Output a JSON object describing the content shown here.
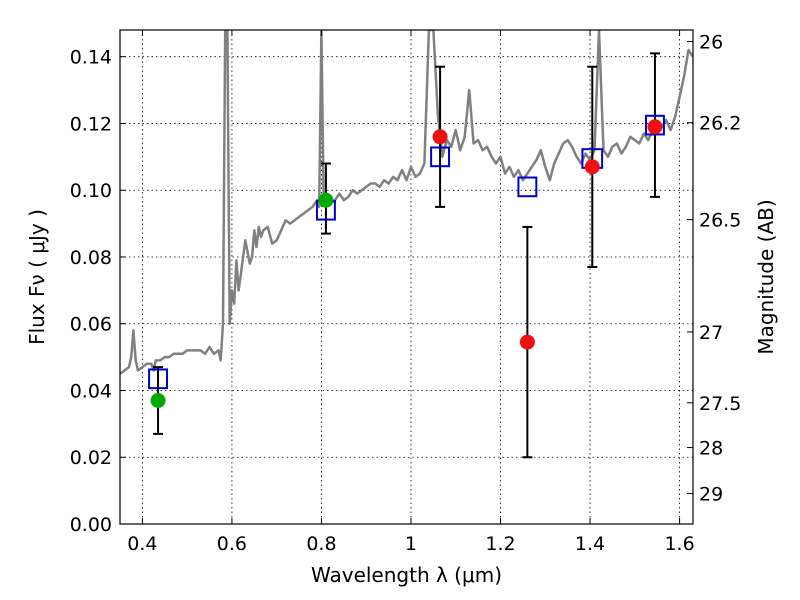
{
  "chart_data": {
    "type": "scatter",
    "xlabel": "Wavelength  λ (μm)",
    "ylabel_left": "Flux  Fν  ( μJy )",
    "ylabel_right": "Magnitude (AB)",
    "xlim": [
      0.35,
      1.63
    ],
    "ylim": [
      0.0,
      0.148
    ],
    "grid": true,
    "x_ticks": [
      0.4,
      0.6,
      0.8,
      1.0,
      1.2,
      1.4,
      1.6
    ],
    "x_tick_labels": [
      "0.4",
      "0.6",
      "0.8",
      "1",
      "1.2",
      "1.4",
      "1.6"
    ],
    "y_ticks": [
      0.0,
      0.02,
      0.04,
      0.06,
      0.08,
      0.1,
      0.12,
      0.14
    ],
    "y_tick_labels": [
      "0.00",
      "0.02",
      "0.04",
      "0.06",
      "0.08",
      "0.10",
      "0.12",
      "0.14"
    ],
    "right_axis_ticks": [
      {
        "label": "26",
        "magnitude": 26
      },
      {
        "label": "26.2",
        "magnitude": 26.2
      },
      {
        "label": "26.5",
        "magnitude": 26.5
      },
      {
        "label": "27",
        "magnitude": 27
      },
      {
        "label": "27.5",
        "magnitude": 27.5
      },
      {
        "label": "28",
        "magnitude": 28
      },
      {
        "label": "29",
        "magnitude": 29
      }
    ],
    "colors": {
      "spectrum": "#808080",
      "observed_blue_band": "#00aa00",
      "observed_red_band": "#ee1111",
      "model": "#0000cc",
      "error_bar": "#000000"
    },
    "spectrum": {
      "x": [
        0.35,
        0.36,
        0.37,
        0.375,
        0.38,
        0.385,
        0.39,
        0.4,
        0.41,
        0.42,
        0.425,
        0.43,
        0.44,
        0.45,
        0.46,
        0.47,
        0.48,
        0.49,
        0.5,
        0.51,
        0.52,
        0.53,
        0.54,
        0.55,
        0.56,
        0.57,
        0.575,
        0.58,
        0.585,
        0.59,
        0.595,
        0.6,
        0.605,
        0.61,
        0.615,
        0.62,
        0.63,
        0.64,
        0.645,
        0.65,
        0.655,
        0.66,
        0.665,
        0.67,
        0.68,
        0.69,
        0.7,
        0.71,
        0.72,
        0.73,
        0.74,
        0.75,
        0.76,
        0.77,
        0.78,
        0.79,
        0.795,
        0.8,
        0.805,
        0.81,
        0.82,
        0.83,
        0.84,
        0.85,
        0.86,
        0.87,
        0.88,
        0.89,
        0.9,
        0.91,
        0.92,
        0.93,
        0.94,
        0.95,
        0.96,
        0.97,
        0.98,
        0.99,
        1.0,
        1.01,
        1.02,
        1.03,
        1.04,
        1.05,
        1.06,
        1.07,
        1.08,
        1.09,
        1.1,
        1.11,
        1.12,
        1.13,
        1.14,
        1.15,
        1.16,
        1.17,
        1.18,
        1.19,
        1.2,
        1.21,
        1.22,
        1.23,
        1.24,
        1.25,
        1.26,
        1.27,
        1.28,
        1.29,
        1.3,
        1.31,
        1.32,
        1.33,
        1.34,
        1.35,
        1.36,
        1.37,
        1.38,
        1.39,
        1.4,
        1.41,
        1.42,
        1.43,
        1.44,
        1.45,
        1.46,
        1.47,
        1.48,
        1.49,
        1.5,
        1.51,
        1.52,
        1.53,
        1.54,
        1.55,
        1.56,
        1.57,
        1.58,
        1.59,
        1.6,
        1.61,
        1.62,
        1.63
      ],
      "y": [
        0.045,
        0.046,
        0.047,
        0.05,
        0.058,
        0.049,
        0.046,
        0.047,
        0.048,
        0.048,
        0.046,
        0.049,
        0.049,
        0.05,
        0.05,
        0.051,
        0.051,
        0.051,
        0.052,
        0.052,
        0.052,
        0.052,
        0.051,
        0.053,
        0.051,
        0.052,
        0.049,
        0.06,
        0.148,
        0.148,
        0.06,
        0.07,
        0.066,
        0.079,
        0.07,
        0.075,
        0.085,
        0.078,
        0.08,
        0.088,
        0.083,
        0.089,
        0.086,
        0.088,
        0.089,
        0.084,
        0.085,
        0.088,
        0.091,
        0.09,
        0.091,
        0.092,
        0.093,
        0.094,
        0.095,
        0.097,
        0.095,
        0.148,
        0.096,
        0.098,
        0.096,
        0.097,
        0.099,
        0.097,
        0.098,
        0.1,
        0.099,
        0.1,
        0.101,
        0.102,
        0.102,
        0.101,
        0.103,
        0.102,
        0.104,
        0.103,
        0.106,
        0.103,
        0.107,
        0.104,
        0.105,
        0.108,
        0.148,
        0.148,
        0.123,
        0.11,
        0.115,
        0.113,
        0.118,
        0.112,
        0.116,
        0.13,
        0.114,
        0.115,
        0.112,
        0.113,
        0.11,
        0.108,
        0.11,
        0.105,
        0.107,
        0.104,
        0.106,
        0.103,
        0.105,
        0.107,
        0.109,
        0.112,
        0.107,
        0.103,
        0.108,
        0.111,
        0.114,
        0.115,
        0.113,
        0.11,
        0.108,
        0.111,
        0.109,
        0.112,
        0.148,
        0.112,
        0.11,
        0.113,
        0.114,
        0.111,
        0.113,
        0.116,
        0.115,
        0.114,
        0.117,
        0.115,
        0.118,
        0.12,
        0.119,
        0.121,
        0.118,
        0.122,
        0.128,
        0.134,
        0.142,
        0.14
      ]
    },
    "series": [
      {
        "marker": "circle",
        "color": "#00aa00",
        "x": [
          0.435,
          0.81
        ],
        "y": [
          0.037,
          0.097
        ],
        "err_low": [
          0.027,
          0.087
        ],
        "err_high": [
          0.047,
          0.108
        ]
      },
      {
        "marker": "circle",
        "color": "#ee1111",
        "x": [
          1.065,
          1.26,
          1.405,
          1.545
        ],
        "y": [
          0.116,
          0.0545,
          0.107,
          0.119
        ],
        "err_low": [
          0.095,
          0.02,
          0.077,
          0.098
        ],
        "err_high": [
          0.137,
          0.089,
          0.137,
          0.141
        ]
      },
      {
        "marker": "open-square",
        "color": "#0000cc",
        "x": [
          0.435,
          0.81,
          1.065,
          1.26,
          1.405,
          1.545
        ],
        "y": [
          0.0435,
          0.094,
          0.11,
          0.101,
          0.1095,
          0.1195
        ],
        "half_width_x": [
          0.02,
          0.02,
          0.02,
          0.02,
          0.022,
          0.02
        ],
        "half_height_y": [
          0.0028,
          0.0028,
          0.0028,
          0.0028,
          0.0028,
          0.0028
        ]
      }
    ]
  }
}
